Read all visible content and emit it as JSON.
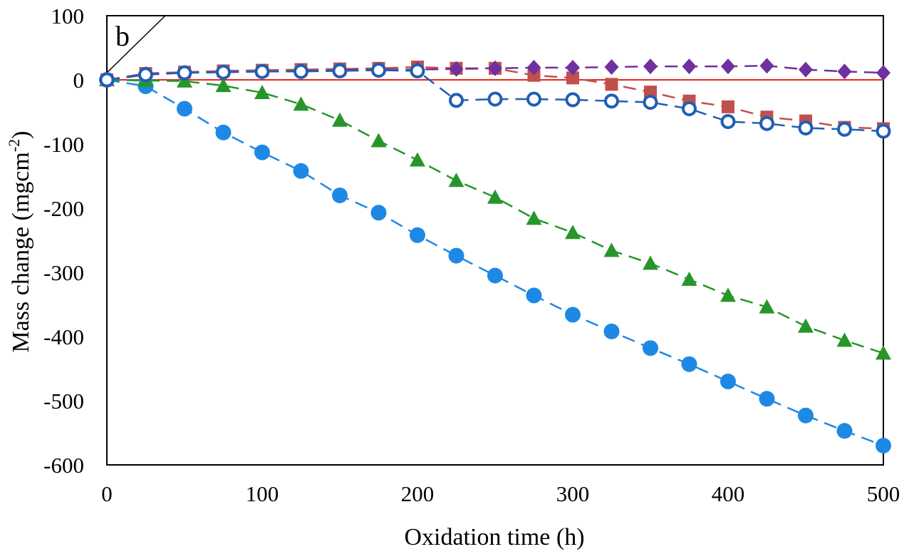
{
  "chart_data": {
    "type": "line",
    "panel_label": "b",
    "xlabel": "Oxidation time (h)",
    "ylabel": {
      "main": "Mass change (mgcm",
      "sup": "-2",
      "close": ")"
    },
    "xlim": [
      0,
      500
    ],
    "ylim": [
      -600,
      100
    ],
    "xticks": [
      0,
      100,
      200,
      300,
      400,
      500
    ],
    "yticks": [
      100,
      0,
      -100,
      -200,
      -300,
      -400,
      -500,
      -600
    ],
    "grid": false,
    "reference_line": {
      "y": 0,
      "color": "#e8281f"
    },
    "x": [
      0,
      25,
      50,
      75,
      100,
      125,
      150,
      175,
      200,
      225,
      250,
      275,
      300,
      325,
      350,
      375,
      400,
      425,
      450,
      475,
      500
    ],
    "series": [
      {
        "marker": "square",
        "color": "#c0504d",
        "values": [
          0,
          10,
          12,
          14,
          15,
          16,
          17,
          18,
          20,
          18,
          18,
          7,
          3,
          -7,
          -19,
          -33,
          -42,
          -58,
          -64,
          -74,
          -76
        ]
      },
      {
        "marker": "diamond",
        "color": "#7030a0",
        "values": [
          0,
          9,
          11,
          12,
          13,
          14,
          15,
          16,
          16,
          17,
          18,
          19,
          19,
          20,
          21,
          21,
          21,
          22,
          16,
          13,
          11
        ]
      },
      {
        "marker": "open-circle",
        "color": "#1f5fb4",
        "values": [
          0,
          8,
          11,
          12,
          13,
          13,
          14,
          15,
          14,
          -32,
          -30,
          -30,
          -31,
          -33,
          -35,
          -45,
          -65,
          -68,
          -75,
          -77,
          -80
        ]
      },
      {
        "marker": "triangle",
        "color": "#27962a",
        "values": [
          0,
          -1,
          -2,
          -9,
          -20,
          -38,
          -63,
          -95,
          -125,
          -157,
          -183,
          -216,
          -238,
          -266,
          -286,
          -311,
          -336,
          -354,
          -384,
          -406,
          -426
        ]
      },
      {
        "marker": "filled-circle",
        "color": "#1e88e5",
        "values": [
          0,
          -10,
          -45,
          -82,
          -113,
          -142,
          -180,
          -207,
          -242,
          -274,
          -305,
          -336,
          -366,
          -392,
          -418,
          -443,
          -470,
          -497,
          -523,
          -547,
          -570
        ]
      }
    ]
  }
}
